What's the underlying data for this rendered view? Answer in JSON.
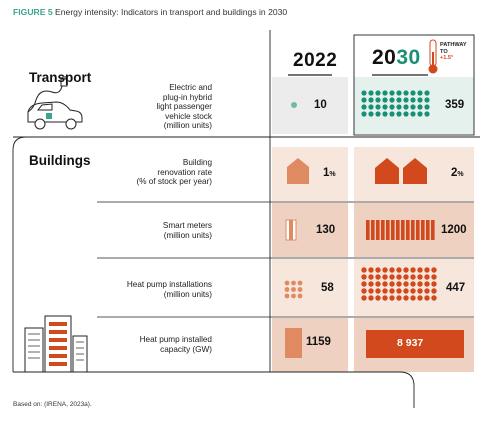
{
  "figure": {
    "label": "FIGURE 5",
    "title": "Energy intensity: Indicators in transport and buildings in 2030"
  },
  "columns": {
    "year_2022": "2022",
    "year_2030_prefix": "20",
    "year_2030_suffix": "30",
    "pathway_line1": "PATHWAY",
    "pathway_line2": "TO",
    "pathway_line3": "+1.5°"
  },
  "sections": {
    "transport": "Transport",
    "buildings": "Buildings"
  },
  "rows": [
    {
      "label_lines": [
        "Electric and",
        "plug-in hybrid",
        "light passenger",
        "vehicle stock",
        "(million units)"
      ],
      "v2022": "10",
      "v2030": "359"
    },
    {
      "label_lines": [
        "Building",
        "renovation rate",
        "(% of stock per year)"
      ],
      "v2022": "1",
      "v2030": "2",
      "unit": "%"
    },
    {
      "label_lines": [
        "Smart meters",
        "(million units)"
      ],
      "v2022": "130",
      "v2030": "1200"
    },
    {
      "label_lines": [
        "Heat pump installations",
        "(million units)"
      ],
      "v2022": "58",
      "v2030": "447"
    },
    {
      "label_lines": [
        "Heat pump installed",
        "capacity (GW)"
      ],
      "v2022": "1159",
      "v2030": "8 937"
    }
  ],
  "source": "Based on: (IRENA, 2023a).",
  "colors": {
    "teal": "#1a8f78",
    "teal_light": "#e4f1ec",
    "orange": "#e08a62",
    "orange_dark": "#d1491c",
    "peach_light": "#f7e6dc",
    "peach_mid": "#efd1c1",
    "grey_light": "#ececec",
    "label_green": "#3aa48f"
  },
  "icons": [
    "car-charging-icon",
    "thermometer-icon",
    "city-buildings-icon",
    "house-icon"
  ]
}
